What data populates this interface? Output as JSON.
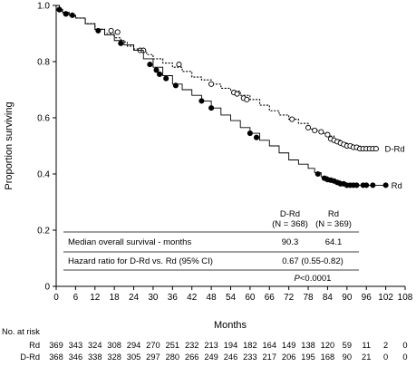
{
  "chart_data": {
    "type": "line",
    "xlabel": "Months",
    "ylabel": "Proportion surviving",
    "xlim": [
      0,
      108
    ],
    "ylim": [
      0,
      1.0
    ],
    "x_ticks": [
      0,
      6,
      12,
      18,
      24,
      30,
      36,
      42,
      48,
      54,
      60,
      66,
      72,
      78,
      84,
      90,
      96,
      102,
      108
    ],
    "y_ticks": [
      0,
      0.2,
      0.4,
      0.6,
      0.8,
      1.0
    ],
    "grid": false,
    "series": [
      {
        "name": "D-Rd",
        "line_style": "dotted",
        "marker": "open-circle",
        "x": [
          0,
          1,
          2,
          4,
          6,
          9,
          12,
          15,
          18,
          20,
          22,
          24,
          26,
          28,
          30,
          33,
          36,
          39,
          42,
          45,
          48,
          51,
          54,
          57,
          60,
          63,
          66,
          69,
          72,
          75,
          78,
          80,
          82,
          84,
          86,
          88,
          90,
          92,
          94,
          96,
          98,
          100
        ],
        "y": [
          1.0,
          0.985,
          0.975,
          0.965,
          0.955,
          0.935,
          0.915,
          0.9,
          0.885,
          0.87,
          0.855,
          0.845,
          0.838,
          0.825,
          0.81,
          0.795,
          0.78,
          0.765,
          0.745,
          0.735,
          0.72,
          0.705,
          0.695,
          0.68,
          0.665,
          0.645,
          0.625,
          0.61,
          0.595,
          0.58,
          0.56,
          0.555,
          0.545,
          0.535,
          0.52,
          0.51,
          0.505,
          0.5,
          0.495,
          0.49,
          0.49,
          0.49
        ],
        "censored": [
          {
            "x": 1,
            "y": 0.985
          },
          {
            "x": 3,
            "y": 0.97
          },
          {
            "x": 17,
            "y": 0.91
          },
          {
            "x": 19,
            "y": 0.905
          },
          {
            "x": 26,
            "y": 0.84
          },
          {
            "x": 27,
            "y": 0.84
          },
          {
            "x": 38,
            "y": 0.79
          },
          {
            "x": 48,
            "y": 0.72
          },
          {
            "x": 55,
            "y": 0.69
          },
          {
            "x": 56,
            "y": 0.685
          },
          {
            "x": 58,
            "y": 0.67
          },
          {
            "x": 59,
            "y": 0.665
          },
          {
            "x": 73,
            "y": 0.595
          },
          {
            "x": 78,
            "y": 0.565
          },
          {
            "x": 80,
            "y": 0.555
          },
          {
            "x": 82,
            "y": 0.55
          },
          {
            "x": 84,
            "y": 0.54
          },
          {
            "x": 85,
            "y": 0.525
          },
          {
            "x": 86,
            "y": 0.52
          },
          {
            "x": 87,
            "y": 0.515
          },
          {
            "x": 88,
            "y": 0.51
          },
          {
            "x": 89,
            "y": 0.505
          },
          {
            "x": 90,
            "y": 0.5
          },
          {
            "x": 91,
            "y": 0.5
          },
          {
            "x": 92,
            "y": 0.495
          },
          {
            "x": 93,
            "y": 0.495
          },
          {
            "x": 94,
            "y": 0.49
          },
          {
            "x": 95,
            "y": 0.49
          },
          {
            "x": 96,
            "y": 0.49
          },
          {
            "x": 97,
            "y": 0.49
          },
          {
            "x": 98,
            "y": 0.49
          },
          {
            "x": 99,
            "y": 0.49
          }
        ]
      },
      {
        "name": "Rd",
        "line_style": "solid",
        "marker": "filled-circle",
        "x": [
          0,
          1,
          2,
          4,
          6,
          9,
          12,
          15,
          18,
          21,
          24,
          27,
          30,
          33,
          36,
          39,
          42,
          45,
          48,
          51,
          54,
          57,
          60,
          63,
          66,
          69,
          72,
          75,
          78,
          80,
          82,
          84,
          86,
          88,
          90,
          93,
          96,
          99,
          102
        ],
        "y": [
          1.0,
          0.98,
          0.975,
          0.965,
          0.955,
          0.935,
          0.915,
          0.895,
          0.875,
          0.86,
          0.84,
          0.81,
          0.78,
          0.75,
          0.72,
          0.7,
          0.68,
          0.66,
          0.635,
          0.61,
          0.59,
          0.565,
          0.545,
          0.52,
          0.5,
          0.475,
          0.45,
          0.435,
          0.42,
          0.405,
          0.39,
          0.38,
          0.375,
          0.365,
          0.36,
          0.36,
          0.36,
          0.36,
          0.36
        ],
        "censored": [
          {
            "x": 1,
            "y": 0.985
          },
          {
            "x": 3,
            "y": 0.97
          },
          {
            "x": 5,
            "y": 0.965
          },
          {
            "x": 13,
            "y": 0.91
          },
          {
            "x": 20,
            "y": 0.865
          },
          {
            "x": 29,
            "y": 0.79
          },
          {
            "x": 31,
            "y": 0.77
          },
          {
            "x": 32,
            "y": 0.755
          },
          {
            "x": 34,
            "y": 0.74
          },
          {
            "x": 37,
            "y": 0.715
          },
          {
            "x": 45,
            "y": 0.66
          },
          {
            "x": 48,
            "y": 0.635
          },
          {
            "x": 60,
            "y": 0.545
          },
          {
            "x": 62,
            "y": 0.53
          },
          {
            "x": 81,
            "y": 0.4
          },
          {
            "x": 83,
            "y": 0.385
          },
          {
            "x": 84,
            "y": 0.38
          },
          {
            "x": 85,
            "y": 0.378
          },
          {
            "x": 86,
            "y": 0.375
          },
          {
            "x": 87,
            "y": 0.37
          },
          {
            "x": 88,
            "y": 0.365
          },
          {
            "x": 89,
            "y": 0.365
          },
          {
            "x": 90,
            "y": 0.36
          },
          {
            "x": 91,
            "y": 0.36
          },
          {
            "x": 92,
            "y": 0.36
          },
          {
            "x": 93,
            "y": 0.36
          },
          {
            "x": 95,
            "y": 0.36
          },
          {
            "x": 96,
            "y": 0.36
          },
          {
            "x": 98,
            "y": 0.36
          },
          {
            "x": 102,
            "y": 0.36
          }
        ]
      }
    ],
    "stats_table": {
      "col1_header": "D-Rd",
      "col1_n": "(N = 368)",
      "col2_header": "Rd",
      "col2_n": "(N = 369)",
      "row1_label": "Median overall survival - months",
      "row1_col1": "90.3",
      "row1_col2": "64.1",
      "row2_label": "Hazard ratio for D-Rd vs. Rd (95% CI)",
      "row2_value": "0.67 (0.55-0.82)",
      "p_label": "P",
      "p_value": "<0.0001"
    },
    "risk_table": {
      "title": "No. at risk",
      "rows": [
        {
          "label": "Rd",
          "values": [
            369,
            343,
            324,
            308,
            294,
            270,
            251,
            232,
            213,
            194,
            182,
            164,
            149,
            138,
            120,
            59,
            11,
            2,
            0
          ]
        },
        {
          "label": "D-Rd",
          "values": [
            368,
            346,
            338,
            328,
            305,
            297,
            280,
            266,
            249,
            246,
            233,
            217,
            206,
            195,
            168,
            90,
            21,
            0,
            0
          ]
        }
      ]
    }
  }
}
